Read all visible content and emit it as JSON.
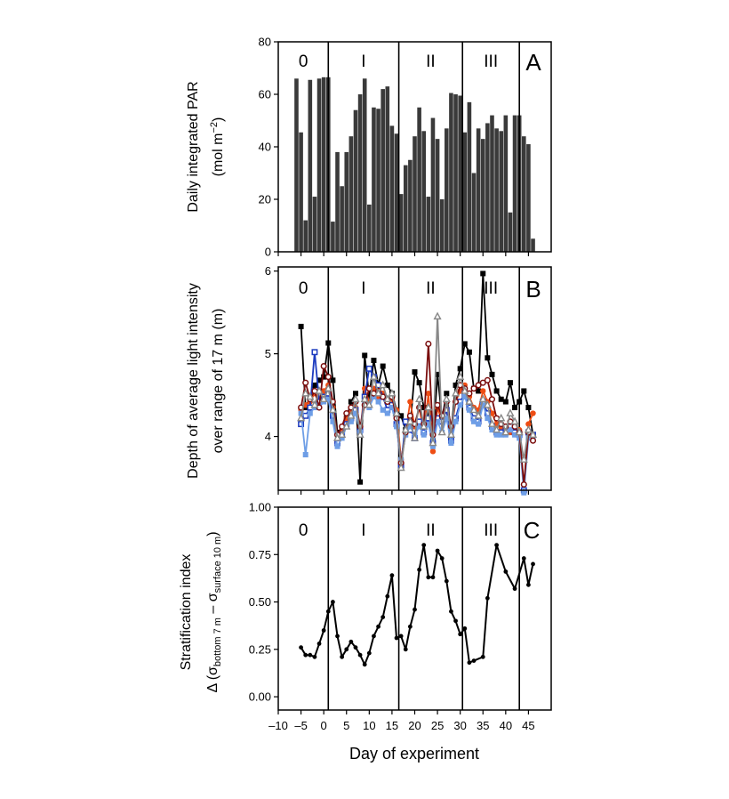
{
  "figure": {
    "xlabel": "Day of experiment",
    "x_ticks": [
      -10,
      -5,
      0,
      5,
      10,
      15,
      20,
      25,
      30,
      35,
      40,
      45
    ],
    "x_tick_labels": [
      "–10",
      "–5",
      "0",
      "5",
      "10",
      "15",
      "20",
      "25",
      "30",
      "35",
      "40",
      "45"
    ],
    "xlim": [
      -10,
      50
    ],
    "phase_boundaries": [
      1,
      16.5,
      30.5,
      43
    ],
    "phase_labels": [
      "0",
      "I",
      "II",
      "III"
    ]
  },
  "chart_data": [
    {
      "panel": "A",
      "type": "bar",
      "ylabel_line1": "Daily integrated PAR",
      "ylabel_line2_pre": "(mol m",
      "ylabel_line2_sup": "−2",
      "ylabel_line2_post": ")",
      "ylim": [
        0,
        80
      ],
      "y_ticks": [
        0,
        20,
        40,
        60,
        80
      ],
      "color": "#3a3a3a",
      "x": [
        -6,
        -5,
        -4,
        -3,
        -2,
        -1,
        0,
        1,
        2,
        3,
        4,
        5,
        6,
        7,
        8,
        9,
        10,
        11,
        12,
        13,
        14,
        15,
        16,
        17,
        18,
        19,
        20,
        21,
        22,
        23,
        24,
        25,
        26,
        27,
        28,
        29,
        30,
        31,
        32,
        33,
        34,
        35,
        36,
        37,
        38,
        39,
        40,
        41,
        42,
        43,
        44,
        45,
        46
      ],
      "values": [
        66,
        45.5,
        12,
        65.5,
        21,
        66,
        66.5,
        66.5,
        11.5,
        38,
        25,
        38,
        44,
        54,
        60,
        66,
        18,
        55,
        54.5,
        62,
        63,
        48,
        45,
        22,
        33,
        35,
        44,
        55,
        46,
        21,
        51,
        43,
        20,
        47,
        60.5,
        60,
        59.5,
        45.5,
        57,
        30,
        47,
        43,
        49,
        52,
        47,
        46,
        52,
        15,
        52,
        52,
        44,
        41,
        5
      ]
    },
    {
      "panel": "B",
      "type": "line",
      "ylabel_line1": "Depth of average light intensity",
      "ylabel_line2": "over range of 17 m (m)",
      "ylim": [
        3.35,
        6.05
      ],
      "y_ticks": [
        4,
        5,
        6
      ],
      "x": [
        -5,
        -4,
        -3,
        -2,
        -1,
        0,
        1,
        2,
        3,
        4,
        5,
        6,
        7,
        8,
        9,
        10,
        11,
        12,
        13,
        14,
        15,
        16,
        17,
        18,
        19,
        20,
        21,
        22,
        23,
        24,
        25,
        26,
        27,
        28,
        29,
        30,
        31,
        32,
        33,
        34,
        35,
        36,
        37,
        38,
        39,
        40,
        41,
        42,
        43,
        44,
        45,
        46
      ],
      "series": [
        {
          "color": "#000000",
          "marker": "square-filled",
          "values": [
            5.33,
            4.35,
            4.48,
            4.62,
            4.68,
            4.72,
            5.13,
            4.68,
            4.05,
            4.08,
            4.22,
            4.42,
            4.52,
            3.45,
            4.98,
            4.48,
            4.92,
            4.62,
            4.85,
            4.62,
            4.52,
            4.32,
            4.25,
            4.08,
            4.12,
            4.78,
            4.65,
            4.35,
            4.28,
            3.95,
            4.75,
            4.22,
            4.52,
            4.05,
            4.62,
            4.82,
            5.12,
            5.02,
            4.58,
            4.55,
            5.97,
            4.95,
            4.75,
            4.55,
            4.45,
            4.42,
            4.65,
            4.35,
            4.42,
            4.55,
            4.35,
            4.02
          ]
        },
        {
          "color": "#ee4d14",
          "marker": "circle-filled",
          "values": [
            4.32,
            4.38,
            4.42,
            4.52,
            4.45,
            4.55,
            4.62,
            4.35,
            3.95,
            4.08,
            4.22,
            4.28,
            4.35,
            4.05,
            4.58,
            4.42,
            4.58,
            4.45,
            4.52,
            4.42,
            4.45,
            4.32,
            3.72,
            4.05,
            4.42,
            4.12,
            4.35,
            4.05,
            4.52,
            3.82,
            4.35,
            4.18,
            4.32,
            4.05,
            4.42,
            4.55,
            4.62,
            4.48,
            4.35,
            4.32,
            4.55,
            4.42,
            4.28,
            4.15,
            4.08,
            4.05,
            4.05,
            4.15,
            4.08,
            3.35,
            4.15,
            4.28
          ]
        },
        {
          "color": "#1c3bbf",
          "marker": "square-open",
          "values": [
            4.15,
            4.25,
            4.35,
            5.02,
            4.42,
            4.48,
            4.52,
            4.25,
            3.92,
            4.02,
            4.15,
            4.22,
            4.32,
            4.08,
            4.48,
            4.82,
            4.72,
            4.62,
            4.48,
            4.32,
            4.38,
            4.15,
            3.65,
            4.18,
            4.08,
            3.98,
            4.18,
            4.05,
            4.22,
            3.92,
            4.22,
            4.18,
            4.32,
            3.95,
            4.22,
            4.42,
            4.52,
            4.35,
            4.22,
            4.18,
            4.42,
            4.28,
            4.12,
            4.05,
            4.05,
            4.08,
            4.12,
            4.05,
            4.02,
            3.35,
            4.05,
            4.02
          ]
        },
        {
          "color": "#6e9ee6",
          "marker": "square-filled",
          "values": [
            4.28,
            3.78,
            4.28,
            4.35,
            4.38,
            4.42,
            4.45,
            4.18,
            3.88,
            3.98,
            4.12,
            4.18,
            4.28,
            4.05,
            4.42,
            4.35,
            4.48,
            4.42,
            4.32,
            4.28,
            4.35,
            4.12,
            3.72,
            4.02,
            4.12,
            4.02,
            4.12,
            4.02,
            4.15,
            3.88,
            4.18,
            4.05,
            4.22,
            3.92,
            4.18,
            4.38,
            4.48,
            4.32,
            4.18,
            4.15,
            4.38,
            4.22,
            4.08,
            4.02,
            4.02,
            4.02,
            4.08,
            4.02,
            3.98,
            3.32,
            3.98,
            3.98
          ]
        },
        {
          "color": "#7a0d0d",
          "marker": "circle-open",
          "values": [
            4.35,
            4.65,
            4.45,
            4.55,
            4.35,
            4.85,
            4.72,
            4.42,
            4.02,
            4.12,
            4.28,
            4.35,
            4.42,
            4.12,
            4.38,
            4.58,
            4.52,
            4.55,
            4.48,
            4.42,
            4.48,
            4.22,
            3.68,
            4.05,
            4.25,
            4.15,
            4.35,
            4.15,
            5.12,
            4.02,
            4.38,
            4.25,
            4.42,
            4.12,
            4.42,
            4.62,
            4.58,
            4.52,
            4.58,
            4.62,
            4.65,
            4.68,
            4.45,
            4.22,
            4.15,
            4.12,
            4.18,
            4.12,
            4.05,
            3.42,
            4.05,
            3.95
          ]
        },
        {
          "color": "#888888",
          "marker": "triangle-open",
          "values": [
            4.22,
            4.52,
            4.48,
            4.38,
            4.55,
            4.45,
            4.58,
            4.32,
            3.98,
            4.02,
            4.12,
            4.25,
            4.45,
            4.02,
            4.45,
            4.38,
            4.72,
            4.52,
            4.62,
            4.45,
            4.52,
            4.28,
            3.62,
            4.08,
            4.18,
            3.98,
            4.45,
            4.12,
            4.35,
            3.92,
            5.45,
            4.05,
            4.45,
            4.02,
            4.52,
            4.72,
            4.55,
            4.42,
            4.32,
            4.25,
            4.45,
            4.38,
            4.15,
            4.08,
            4.22,
            4.05,
            4.28,
            4.18,
            4.05,
            3.72,
            4.08,
            4.02
          ]
        }
      ]
    },
    {
      "panel": "C",
      "type": "line",
      "ylabel_line1": "Stratification index",
      "ylabel_delta": "Δ (σ",
      "ylabel_sub1": "bottom 7 m",
      "ylabel_mid": " – σ",
      "ylabel_sub2": "surface 10 m",
      "ylabel_close": ")",
      "ylim": [
        -0.07,
        1.0
      ],
      "y_ticks": [
        0.0,
        0.25,
        0.5,
        0.75,
        1.0
      ],
      "y_tick_labels": [
        "0.00",
        "0.25",
        "0.50",
        "0.75",
        "1.00"
      ],
      "series": [
        {
          "color": "#000000",
          "marker": "circle-small",
          "x": [
            -5,
            -4,
            -3,
            -2,
            -1,
            0,
            1,
            2,
            3,
            4,
            5,
            6,
            7,
            8,
            9,
            10,
            11,
            12,
            13,
            14,
            15,
            16,
            17,
            18,
            19,
            20,
            21,
            22,
            23,
            24,
            25,
            26,
            27,
            28,
            29,
            30,
            31,
            32,
            33,
            35,
            36,
            38,
            40,
            42,
            44,
            45,
            46
          ],
          "values": [
            0.26,
            0.22,
            0.22,
            0.21,
            0.28,
            0.35,
            0.45,
            0.5,
            0.32,
            0.21,
            0.25,
            0.29,
            0.26,
            0.22,
            0.17,
            0.23,
            0.32,
            0.37,
            0.42,
            0.53,
            0.64,
            0.31,
            0.32,
            0.25,
            0.37,
            0.46,
            0.67,
            0.8,
            0.63,
            0.63,
            0.77,
            0.73,
            0.61,
            0.45,
            0.4,
            0.33,
            0.36,
            0.18,
            0.19,
            0.21,
            0.52,
            0.8,
            0.66,
            0.57,
            0.73,
            0.59,
            0.7
          ]
        }
      ]
    }
  ]
}
